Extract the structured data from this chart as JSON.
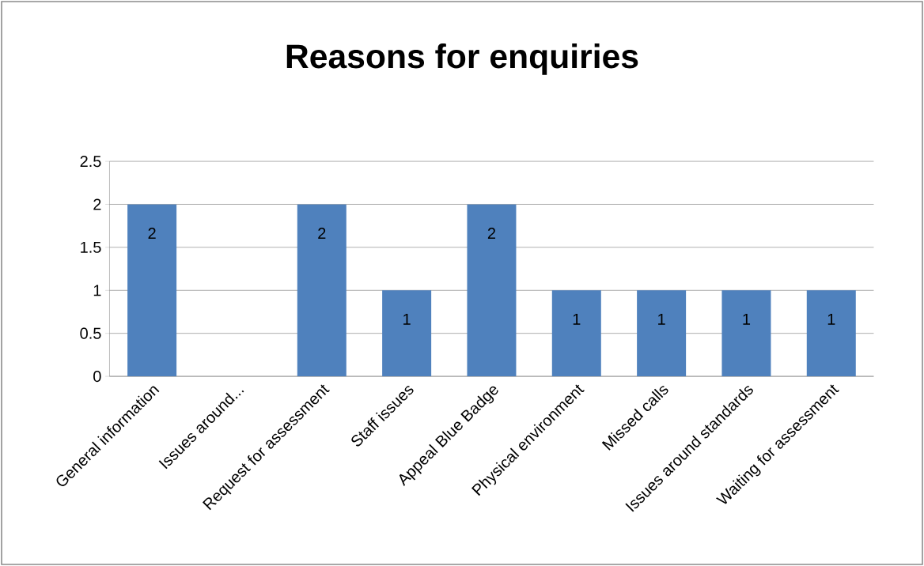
{
  "chart_data": {
    "type": "bar",
    "title": "Reasons for enquiries",
    "categories": [
      "General information",
      "Issues around...",
      "Request for assessment",
      "Staff issues",
      "Appeal Blue Badge",
      "Physical environment",
      "Missed calls",
      "Issues around standards",
      "Waiting for assessment"
    ],
    "values": [
      2,
      0,
      2,
      1,
      2,
      1,
      1,
      1,
      1
    ],
    "value_labels": [
      "2",
      null,
      "2",
      "1",
      "2",
      "1",
      "1",
      "1",
      "1"
    ],
    "color": "#4f81bd",
    "ylim": [
      0,
      2.5
    ],
    "yticks": [
      0,
      0.5,
      1,
      1.5,
      2,
      2.5
    ],
    "grid": "y"
  }
}
